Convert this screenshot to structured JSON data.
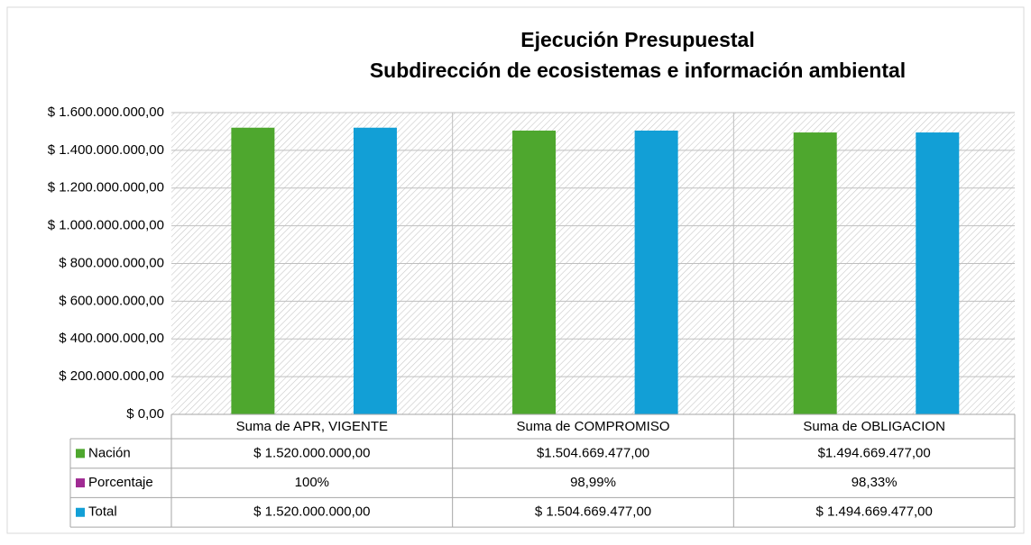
{
  "chart_data": {
    "type": "bar",
    "title": [
      "Ejecución Presupuestal",
      "Subdirección de ecosistemas e información ambiental"
    ],
    "categories": [
      "Suma de APR, VIGENTE",
      "Suma de COMPROMISO",
      "Suma de OBLIGACION"
    ],
    "series": [
      {
        "name": "Nación",
        "color": "#4ea72e",
        "values": [
          1520000000,
          1504669477,
          1494669477
        ],
        "value_labels": [
          "$ 1.520.000.000,00",
          "$1.504.669.477,00",
          "$1.494.669.477,00"
        ]
      },
      {
        "name": "Porcentaje",
        "color": "#a02b93",
        "values": [
          100,
          98.99,
          98.33
        ],
        "value_labels": [
          "100%",
          "98,99%",
          "98,33%"
        ]
      },
      {
        "name": "Total",
        "color": "#129fd6",
        "values": [
          1520000000,
          1504669477,
          1494669477
        ],
        "value_labels": [
          "$ 1.520.000.000,00",
          "$ 1.504.669.477,00",
          "$ 1.494.669.477,00"
        ]
      }
    ],
    "ylim": [
      0,
      1600000000
    ],
    "yticks": [
      {
        "value": 0,
        "label": "$ 0,00"
      },
      {
        "value": 200000000,
        "label": "$ 200.000.000,00"
      },
      {
        "value": 400000000,
        "label": "$ 400.000.000,00"
      },
      {
        "value": 600000000,
        "label": "$ 600.000.000,00"
      },
      {
        "value": 800000000,
        "label": "$ 800.000.000,00"
      },
      {
        "value": 1000000000,
        "label": "$ 1.000.000.000,00"
      },
      {
        "value": 1200000000,
        "label": "$ 1.200.000.000,00"
      },
      {
        "value": 1400000000,
        "label": "$ 1.400.000.000,00"
      },
      {
        "value": 1600000000,
        "label": "$ 1.600.000.000,00"
      }
    ],
    "grid": true
  }
}
